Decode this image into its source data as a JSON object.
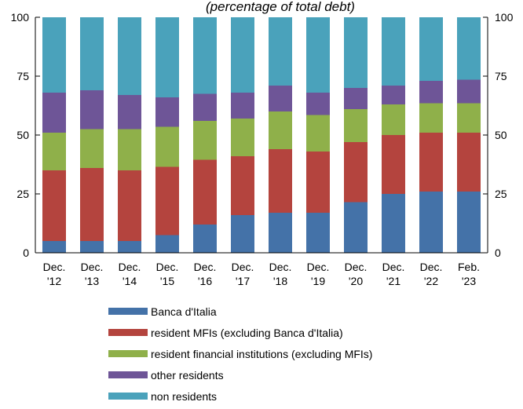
{
  "chart_data": {
    "type": "bar",
    "stacked": true,
    "title": "(percentage of total debt)",
    "xlabel": "",
    "ylabel": "",
    "ylim": [
      0,
      100
    ],
    "y_ticks": [
      0,
      25,
      50,
      75,
      100
    ],
    "dual_y_axis": true,
    "grid": false,
    "legend_position": "bottom",
    "categories": [
      [
        "Dec.",
        "'12"
      ],
      [
        "Dec.",
        "'13"
      ],
      [
        "Dec.",
        "'14"
      ],
      [
        "Dec.",
        "'15"
      ],
      [
        "Dec.",
        "'16"
      ],
      [
        "Dec.",
        "'17"
      ],
      [
        "Dec.",
        "'18"
      ],
      [
        "Dec.",
        "'19"
      ],
      [
        "Dec.",
        "'20"
      ],
      [
        "Dec.",
        "'21"
      ],
      [
        "Dec.",
        "'22"
      ],
      [
        "Feb.",
        "'23"
      ]
    ],
    "series": [
      {
        "name": "Banca d'Italia",
        "color": "#4472a8",
        "values": [
          5,
          5,
          5,
          7.5,
          12,
          16,
          17,
          17,
          21.5,
          25,
          26,
          26
        ]
      },
      {
        "name": "resident MFIs (excluding Banca d'Italia)",
        "color": "#b4443e",
        "values": [
          30,
          31,
          30,
          29,
          27.5,
          25,
          27,
          26,
          25.5,
          25,
          25,
          25
        ]
      },
      {
        "name": "resident financial institutions (excluding MFIs)",
        "color": "#8fb04a",
        "values": [
          16,
          16.5,
          17.5,
          17,
          16.5,
          16,
          16,
          15.5,
          14,
          13,
          12.5,
          12.5
        ]
      },
      {
        "name": "other residents",
        "color": "#6e5597",
        "values": [
          17,
          16.5,
          14.5,
          12.5,
          11.5,
          11,
          11,
          9.5,
          9,
          8,
          9.5,
          10
        ]
      },
      {
        "name": "non residents",
        "color": "#4aa2bb",
        "values": [
          32,
          31,
          33,
          34,
          32.5,
          32,
          29,
          32,
          30,
          29,
          27,
          26.5
        ]
      }
    ]
  }
}
